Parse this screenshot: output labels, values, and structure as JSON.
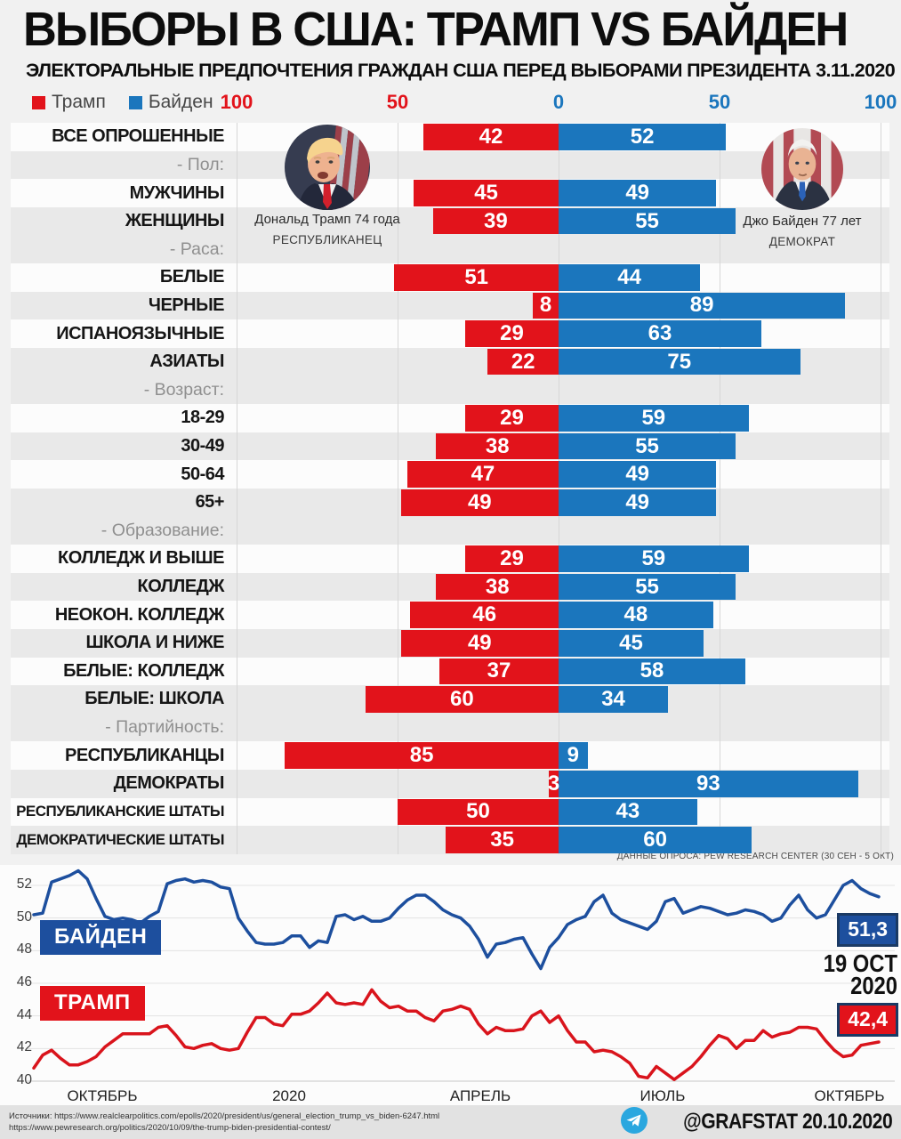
{
  "palette": {
    "trump_red": "#e2131b",
    "biden_blue": "#1b76bd",
    "biden_line_blue": "#1d4f9e",
    "trump_line_red": "#d9141c",
    "telegram_blue": "#2aa7df"
  },
  "header": {
    "title": "ВЫБОРЫ В США: ТРАМП VS БАЙДЕН",
    "subtitle": "ЭЛЕКТОРАЛЬНЫЕ ПРЕДПОЧТЕНИЯ ГРАЖДАН США ПЕРЕД ВЫБОРАМИ ПРЕЗИДЕНТА 3.11.2020"
  },
  "legend": {
    "trump_label": "Трамп",
    "biden_label": "Байден"
  },
  "candidates": {
    "trump": {
      "caption": "Дональд Трамп 74 года",
      "party": "РЕСПУБЛИКАНЕЦ"
    },
    "biden": {
      "caption": "Джо Байден 77 лет",
      "party": "ДЕМОКРАТ"
    }
  },
  "source_note": "ДАННЫЕ ОПРОСА: PEW RESEARCH CENTER (30 СЕН - 5 ОКТ)",
  "chart_data": [
    {
      "type": "bar",
      "variant": "diverging-horizontal",
      "axis_ticks": [
        "100",
        "50",
        "0",
        "50",
        "100"
      ],
      "series": [
        {
          "name": "Трамп",
          "color": "#e2131b"
        },
        {
          "name": "Байден",
          "color": "#1b76bd"
        }
      ],
      "rows": [
        {
          "label": "ВСЕ ОПРОШЕННЫЕ",
          "trump": 42,
          "biden": 52
        },
        {
          "label": "- Пол:",
          "separator": true
        },
        {
          "label": "МУЖЧИНЫ",
          "trump": 45,
          "biden": 49
        },
        {
          "label": "ЖЕНЩИНЫ",
          "trump": 39,
          "biden": 55
        },
        {
          "label": "- Раса:",
          "separator": true
        },
        {
          "label": "БЕЛЫЕ",
          "trump": 51,
          "biden": 44
        },
        {
          "label": "ЧЕРНЫЕ",
          "trump": 8,
          "biden": 89
        },
        {
          "label": "ИСПАНОЯЗЫЧНЫЕ",
          "trump": 29,
          "biden": 63
        },
        {
          "label": "АЗИАТЫ",
          "trump": 22,
          "biden": 75
        },
        {
          "label": "- Возраст:",
          "separator": true
        },
        {
          "label": "18-29",
          "trump": 29,
          "biden": 59
        },
        {
          "label": "30-49",
          "trump": 38,
          "biden": 55
        },
        {
          "label": "50-64",
          "trump": 47,
          "biden": 49
        },
        {
          "label": "65+",
          "trump": 49,
          "biden": 49
        },
        {
          "label": "- Образование:",
          "separator": true
        },
        {
          "label": "КОЛЛЕДЖ И ВЫШЕ",
          "trump": 29,
          "biden": 59
        },
        {
          "label": "КОЛЛЕДЖ",
          "trump": 38,
          "biden": 55
        },
        {
          "label": "НЕОКОН. КОЛЛЕДЖ",
          "trump": 46,
          "biden": 48
        },
        {
          "label": "ШКОЛА И НИЖЕ",
          "trump": 49,
          "biden": 45
        },
        {
          "label": "БЕЛЫЕ: КОЛЛЕДЖ",
          "trump": 37,
          "biden": 58
        },
        {
          "label": "БЕЛЫЕ: ШКОЛА",
          "trump": 60,
          "biden": 34
        },
        {
          "label": "- Партийность:",
          "separator": true
        },
        {
          "label": "РЕСПУБЛИКАНЦЫ",
          "trump": 85,
          "biden": 9
        },
        {
          "label": "ДЕМОКРАТЫ",
          "trump": 3,
          "biden": 93
        },
        {
          "label": "РЕСПУБЛИКАНСКИЕ ШТАТЫ",
          "trump": 50,
          "biden": 43
        },
        {
          "label": "ДЕМОКРАТИЧЕСКИЕ ШТАТЫ",
          "trump": 35,
          "biden": 60
        }
      ]
    },
    {
      "type": "line",
      "ylim": [
        40,
        52
      ],
      "yticks": [
        40,
        42,
        44,
        46,
        48,
        50,
        52
      ],
      "xticks": [
        "ОКТЯБРЬ",
        "2020",
        "АПРЕЛЬ",
        "ИЮЛЬ",
        "ОКТЯБРЬ"
      ],
      "grid": true,
      "legend_position": "inside-left",
      "date_label": {
        "line1": "19 OCT",
        "line2": "2020"
      },
      "series": [
        {
          "name": "БАЙДЕН",
          "color": "#1d4f9e",
          "end_label": "51,3",
          "values": [
            50.2,
            50.3,
            52.2,
            52.4,
            52.6,
            52.9,
            52.4,
            51.2,
            50.1,
            49.9,
            50.0,
            49.9,
            49.7,
            50.1,
            50.4,
            52.1,
            52.3,
            52.4,
            52.2,
            52.3,
            52.2,
            51.9,
            51.8,
            50.0,
            49.2,
            48.5,
            48.4,
            48.4,
            48.5,
            48.9,
            48.9,
            48.2,
            48.6,
            48.5,
            50.1,
            50.2,
            49.9,
            50.1,
            49.8,
            49.8,
            50.0,
            50.6,
            51.1,
            51.4,
            51.4,
            51.0,
            50.5,
            50.2,
            50.0,
            49.5,
            48.7,
            47.6,
            48.4,
            48.5,
            48.7,
            48.8,
            47.8,
            46.9,
            48.2,
            48.8,
            49.6,
            49.9,
            50.1,
            51.0,
            51.4,
            50.3,
            49.9,
            49.7,
            49.5,
            49.3,
            49.8,
            51.0,
            51.2,
            50.3,
            50.5,
            50.7,
            50.6,
            50.4,
            50.2,
            50.3,
            50.5,
            50.4,
            50.2,
            49.8,
            50.0,
            50.8,
            51.4,
            50.5,
            50.0,
            50.2,
            51.1,
            52.0,
            52.3,
            51.8,
            51.5,
            51.3
          ]
        },
        {
          "name": "ТРАМП",
          "color": "#d9141c",
          "end_label": "42,4",
          "values": [
            40.8,
            41.6,
            41.9,
            41.4,
            41.0,
            41.0,
            41.2,
            41.5,
            42.1,
            42.5,
            42.9,
            42.9,
            42.9,
            42.9,
            43.3,
            43.4,
            42.8,
            42.1,
            42.0,
            42.2,
            42.3,
            42.0,
            41.9,
            42.0,
            43.0,
            43.9,
            43.9,
            43.5,
            43.4,
            44.1,
            44.1,
            44.3,
            44.8,
            45.4,
            44.8,
            44.7,
            44.8,
            44.7,
            45.6,
            44.9,
            44.5,
            44.6,
            44.3,
            44.3,
            43.9,
            43.7,
            44.3,
            44.4,
            44.6,
            44.4,
            43.5,
            42.9,
            43.3,
            43.1,
            43.1,
            43.2,
            44.0,
            44.3,
            43.6,
            44.0,
            43.1,
            42.4,
            42.4,
            41.8,
            41.9,
            41.8,
            41.5,
            41.1,
            40.3,
            40.2,
            40.9,
            40.5,
            40.1,
            40.5,
            40.9,
            41.5,
            42.2,
            42.8,
            42.6,
            42.0,
            42.5,
            42.5,
            43.1,
            42.7,
            42.9,
            43.0,
            43.3,
            43.3,
            43.2,
            42.5,
            41.9,
            41.5,
            41.6,
            42.2,
            42.3,
            42.4
          ]
        }
      ]
    }
  ],
  "footer": {
    "sources_prefix": "Источники:",
    "source1": "https://www.realclearpolitics.com/epolls/2020/president/us/general_election_trump_vs_biden-6247.html",
    "source2": "https://www.pewresearch.org/politics/2020/10/09/the-trump-biden-presidential-contest/",
    "credit": "@GRAFSTAT 20.10.2020"
  }
}
